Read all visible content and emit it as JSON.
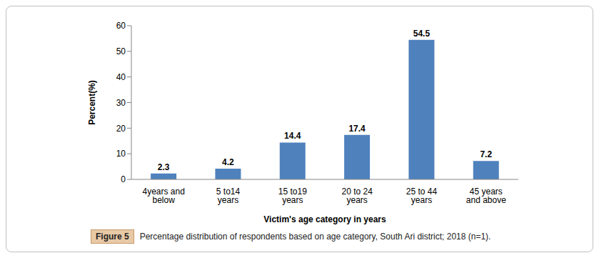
{
  "chart_data": {
    "type": "bar",
    "figure_label": "Figure 5",
    "title": "Percentage distribution of respondents based on age category, South Ari district; 2018 (n=1).",
    "x_label": "Victim's age category in years",
    "y_label": "Percent(%)",
    "categories": [
      "4years and below",
      "5 to14 years",
      "15 to19 years",
      "20 to 24 years",
      "25 to 44 years",
      "45 years and above"
    ],
    "values": [
      2.3,
      4.2,
      14.4,
      17.4,
      54.5,
      7.2
    ],
    "color": "#4f81bd",
    "ylim": [
      0,
      60
    ],
    "yticks": [
      0,
      10,
      20,
      30,
      40,
      50,
      60
    ],
    "grid": false,
    "data_labels": true
  }
}
